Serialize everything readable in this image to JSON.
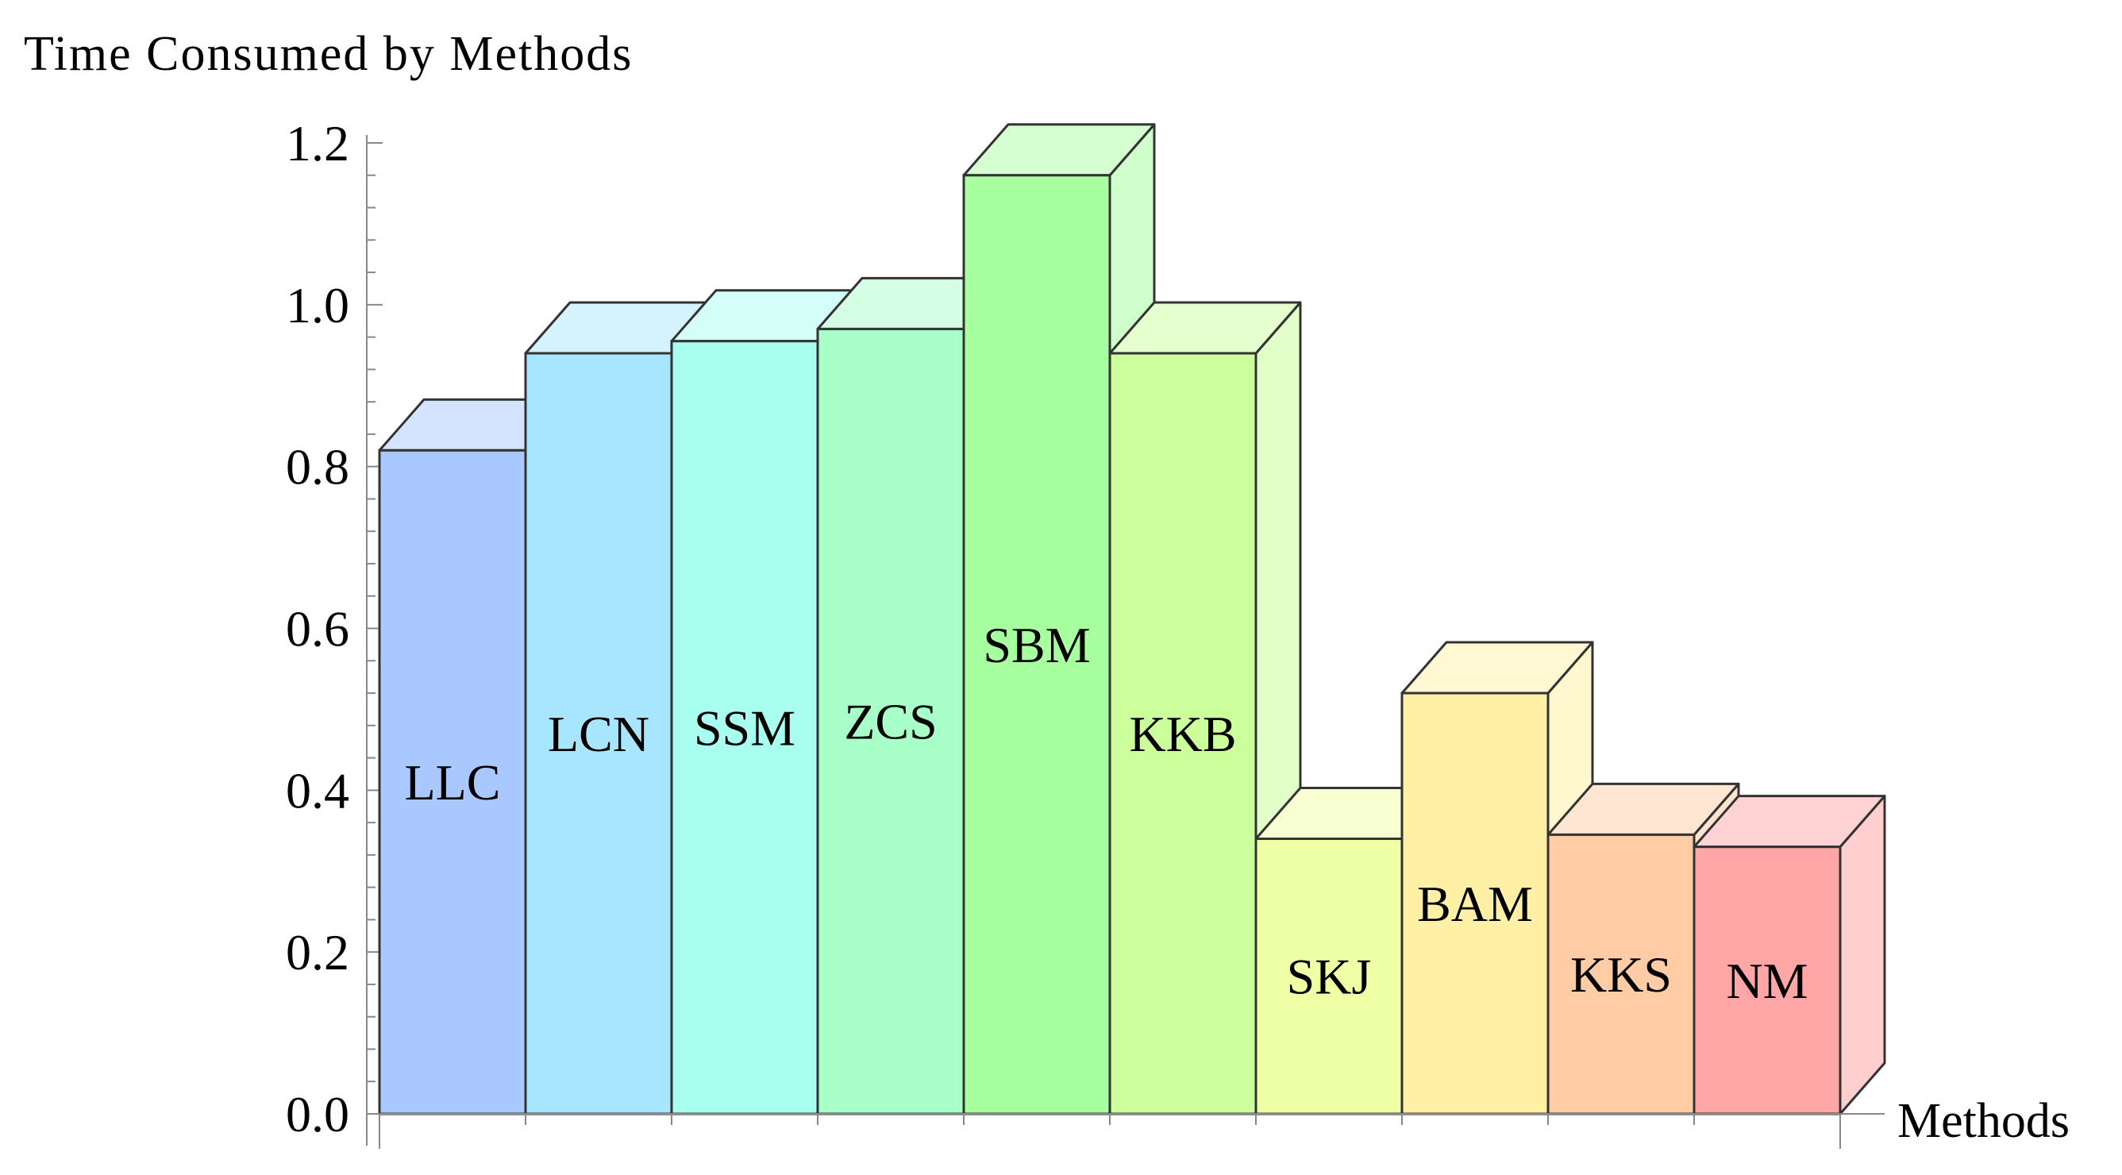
{
  "chart_data": {
    "type": "bar",
    "title": "Time Consumed by Methods",
    "ylabel": "Time Consumed by Methods",
    "xlabel": "Methods",
    "categories": [
      "LLC",
      "LCN",
      "SSM",
      "ZCS",
      "SBM",
      "KKB",
      "SKJ",
      "BAM",
      "KKS",
      "NM"
    ],
    "values": [
      0.82,
      0.94,
      0.955,
      0.97,
      1.16,
      0.94,
      0.34,
      0.52,
      0.345,
      0.33
    ],
    "ylim": [
      0,
      1.2
    ],
    "yticks": [
      "0.0",
      "0.2",
      "0.4",
      "0.6",
      "0.8",
      "1.0",
      "1.2"
    ],
    "grid": false,
    "style": "3d-bars",
    "colors": [
      "#a8c8ff",
      "#a8e6ff",
      "#a8fff0",
      "#a8ffc8",
      "#a8ffa0",
      "#ccff9c",
      "#eeffa6",
      "#fff0a6",
      "#ffcca6",
      "#ffa6a6"
    ]
  }
}
